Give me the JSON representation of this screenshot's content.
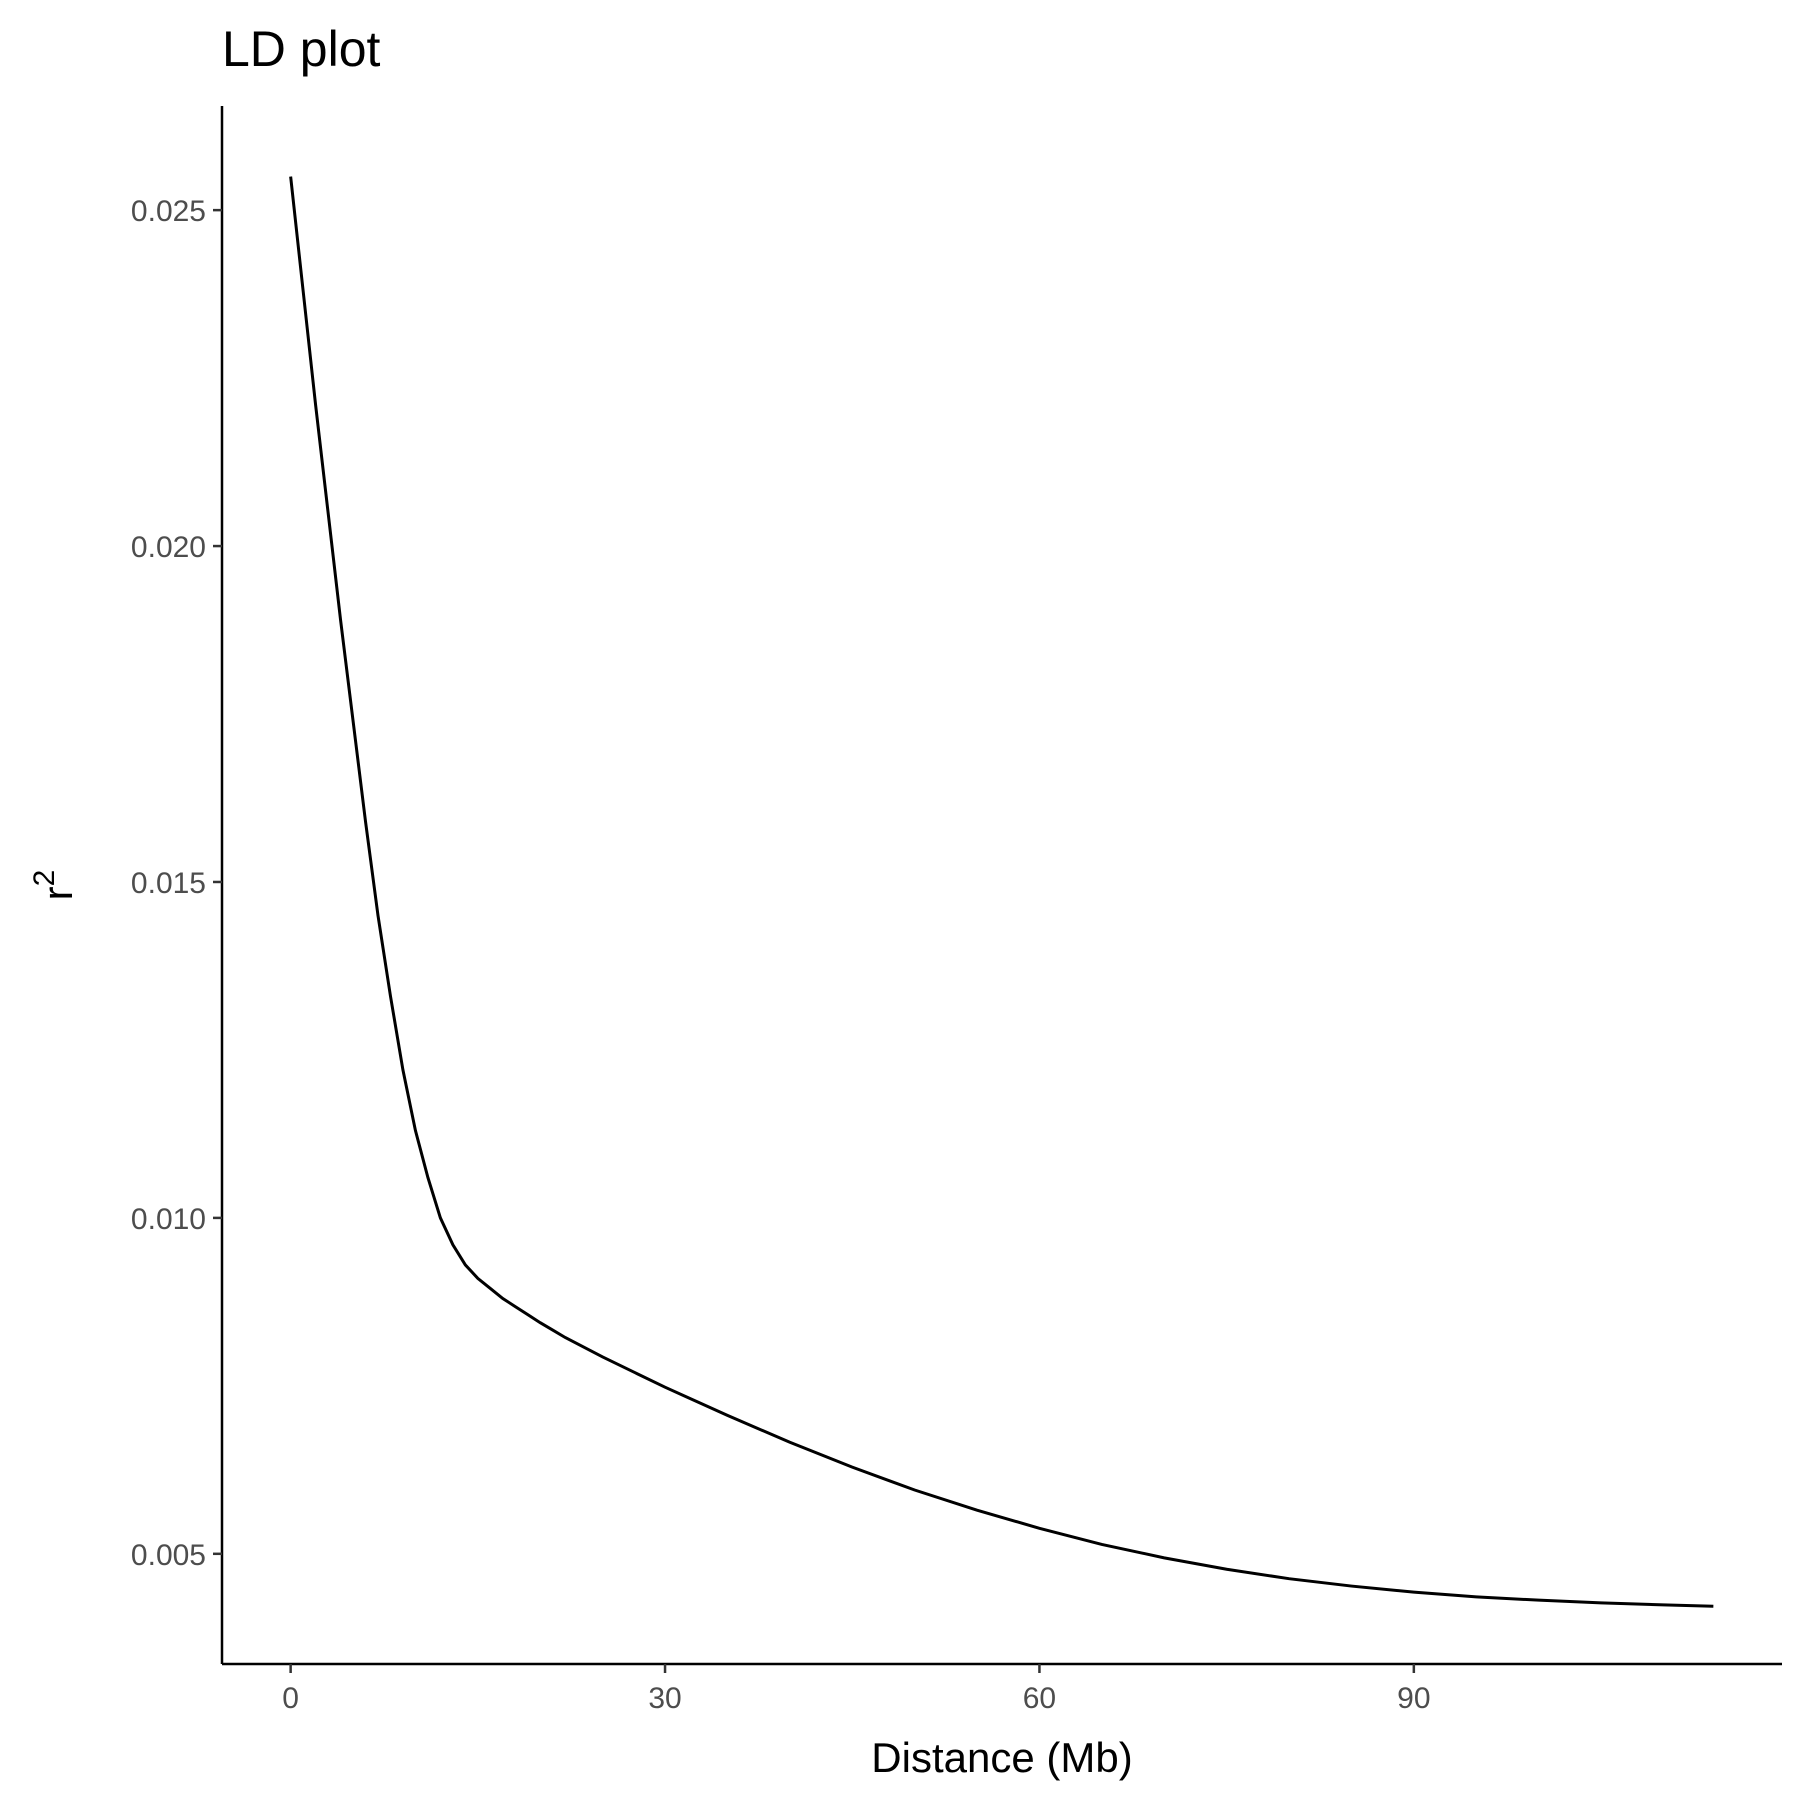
{
  "chart_data": {
    "type": "line",
    "title": "LD plot",
    "xlabel": "Distance (Mb)",
    "ylabel": "r",
    "ylabel_superscript": "2",
    "xlim": [
      -5.5,
      119.5
    ],
    "ylim": [
      0.00336,
      0.02655
    ],
    "x_ticks": [
      0,
      30,
      60,
      90
    ],
    "x_tick_labels": [
      "0",
      "30",
      "60",
      "90"
    ],
    "y_ticks": [
      0.005,
      0.01,
      0.015,
      0.02,
      0.025
    ],
    "y_tick_labels": [
      "0.005",
      "0.010",
      "0.015",
      "0.020",
      "0.025"
    ],
    "grid": false,
    "line_color": "#000000",
    "series": [
      {
        "x": [
          0,
          1,
          2,
          3,
          4,
          5,
          6,
          7,
          8,
          9,
          10,
          11,
          12,
          13,
          14,
          15,
          16,
          17,
          18,
          19,
          20,
          21,
          22,
          25,
          30,
          35,
          40,
          45,
          50,
          55,
          60,
          65,
          70,
          75,
          80,
          85,
          90,
          95,
          100,
          105,
          110,
          114
        ],
        "y": [
          0.0255,
          0.0238,
          0.0221,
          0.0205,
          0.0189,
          0.0174,
          0.0159,
          0.0145,
          0.0133,
          0.0122,
          0.0113,
          0.0106,
          0.01,
          0.0096,
          0.0093,
          0.0091,
          0.00895,
          0.0088,
          0.00868,
          0.00856,
          0.00844,
          0.00833,
          0.00822,
          0.00793,
          0.00748,
          0.00706,
          0.00666,
          0.00629,
          0.00595,
          0.00565,
          0.00538,
          0.00514,
          0.00494,
          0.00477,
          0.00463,
          0.00452,
          0.00443,
          0.00436,
          0.00431,
          0.00427,
          0.00424,
          0.00422
        ]
      }
    ]
  }
}
